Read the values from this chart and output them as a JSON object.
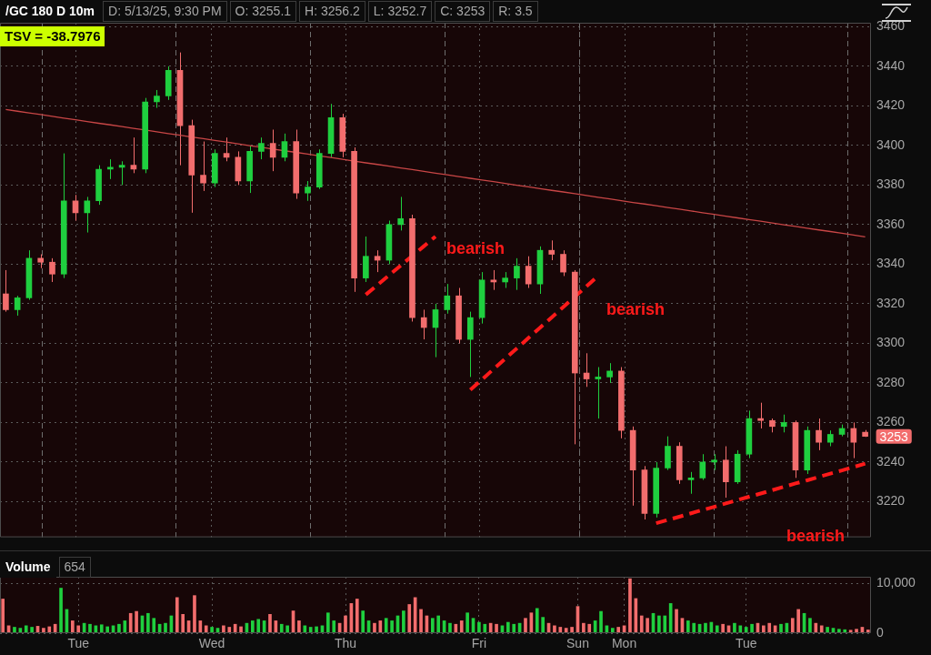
{
  "chart_data": [
    {
      "type": "candlestick",
      "title": "/GC 180 D 10m",
      "subtitle": "TSV = -38.7976",
      "annotations": [
        "D: 5/13/25, 9:30 PM",
        "O: 3255.1",
        "H: 3256.2",
        "L: 3252.7",
        "C: 3253",
        "R: 3.5",
        "bearish",
        "bearish",
        "bearish"
      ],
      "categories": [
        null,
        null,
        null,
        null,
        null,
        null,
        null,
        null,
        null,
        null,
        null,
        null,
        null,
        null,
        null,
        null,
        null,
        null,
        null,
        null,
        null,
        null,
        null,
        null,
        null,
        null,
        null,
        null,
        null,
        null,
        null,
        null,
        null,
        null,
        null,
        null,
        null,
        null,
        null,
        null,
        null,
        null,
        null,
        null,
        null,
        null,
        null,
        null,
        null,
        null,
        null,
        null,
        null,
        null,
        null,
        null,
        null,
        null,
        null,
        null,
        null,
        null,
        null,
        null,
        null,
        null,
        null,
        null,
        null,
        null,
        null,
        null,
        null,
        null,
        null
      ],
      "ylim": [
        3202,
        3462
      ],
      "yticks": [
        3220,
        3240,
        3260,
        3280,
        3300,
        3320,
        3340,
        3360,
        3380,
        3400,
        3420,
        3440,
        3460
      ],
      "tick_labels": "y",
      "grid": true,
      "series": [
        {
          "ohlc": [
            [
              3325,
              3337,
              3316,
              3317
            ],
            [
              3317,
              3324,
              3314,
              3323
            ],
            [
              3323,
              3347,
              3322,
              3343
            ],
            [
              3343,
              3345,
              3338,
              3341
            ],
            [
              3341,
              3343,
              3331,
              3335
            ],
            [
              3335,
              3396,
              3333,
              3372
            ],
            [
              3372,
              3375,
              3362,
              3366
            ],
            [
              3366,
              3374,
              3356,
              3372
            ],
            [
              3372,
              3390,
              3370,
              3388
            ],
            [
              3388,
              3393,
              3383,
              3389
            ],
            [
              3389,
              3392,
              3380,
              3390
            ],
            [
              3390,
              3404,
              3386,
              3388
            ],
            [
              3388,
              3424,
              3386,
              3422
            ],
            [
              3422,
              3428,
              3419,
              3425
            ],
            [
              3425,
              3440,
              3423,
              3438
            ],
            [
              3438,
              3447,
              3390,
              3410
            ],
            [
              3410,
              3413,
              3366,
              3385
            ],
            [
              3385,
              3402,
              3377,
              3381
            ],
            [
              3381,
              3398,
              3379,
              3396
            ],
            [
              3396,
              3404,
              3392,
              3394
            ],
            [
              3394,
              3397,
              3380,
              3382
            ],
            [
              3382,
              3400,
              3376,
              3397
            ],
            [
              3397,
              3404,
              3393,
              3401
            ],
            [
              3401,
              3408,
              3387,
              3394
            ],
            [
              3394,
              3406,
              3392,
              3402
            ],
            [
              3402,
              3408,
              3373,
              3376
            ],
            [
              3376,
              3382,
              3372,
              3379
            ],
            [
              3379,
              3398,
              3378,
              3396
            ],
            [
              3396,
              3421,
              3394,
              3414
            ],
            [
              3414,
              3416,
              3394,
              3397
            ],
            [
              3397,
              3399,
              3326,
              3333
            ],
            [
              3333,
              3354,
              3331,
              3344
            ],
            [
              3344,
              3347,
              3336,
              3342
            ],
            [
              3342,
              3362,
              3340,
              3360
            ],
            [
              3360,
              3374,
              3357,
              3363
            ],
            [
              3363,
              3365,
              3311,
              3313
            ],
            [
              3313,
              3317,
              3302,
              3308
            ],
            [
              3308,
              3320,
              3293,
              3317
            ],
            [
              3317,
              3330,
              3315,
              3324
            ],
            [
              3324,
              3328,
              3300,
              3302
            ],
            [
              3302,
              3316,
              3283,
              3313
            ],
            [
              3313,
              3336,
              3310,
              3332
            ],
            [
              3332,
              3337,
              3327,
              3331
            ],
            [
              3331,
              3336,
              3328,
              3333
            ],
            [
              3333,
              3343,
              3327,
              3339
            ],
            [
              3339,
              3344,
              3328,
              3330
            ],
            [
              3330,
              3349,
              3325,
              3347
            ],
            [
              3347,
              3352,
              3342,
              3345
            ],
            [
              3345,
              3347,
              3334,
              3336
            ],
            [
              3336,
              3337,
              3249,
              3285
            ],
            [
              3285,
              3295,
              3278,
              3282
            ],
            [
              3282,
              3288,
              3262,
              3283
            ],
            [
              3283,
              3290,
              3280,
              3286
            ],
            [
              3286,
              3288,
              3252,
              3256
            ],
            [
              3256,
              3258,
              3218,
              3236
            ],
            [
              3236,
              3238,
              3211,
              3214
            ],
            [
              3214,
              3240,
              3212,
              3237
            ],
            [
              3237,
              3253,
              3236,
              3248
            ],
            [
              3248,
              3250,
              3229,
              3231
            ],
            [
              3231,
              3235,
              3224,
              3232
            ],
            [
              3232,
              3244,
              3231,
              3240
            ],
            [
              3240,
              3244,
              3236,
              3241
            ],
            [
              3241,
              3248,
              3222,
              3230
            ],
            [
              3230,
              3246,
              3229,
              3244
            ],
            [
              3244,
              3266,
              3242,
              3262
            ],
            [
              3262,
              3270,
              3257,
              3261
            ],
            [
              3261,
              3262,
              3255,
              3258
            ],
            [
              3258,
              3264,
              3255,
              3260
            ],
            [
              3260,
              3261,
              3232,
              3236
            ],
            [
              3236,
              3258,
              3234,
              3256
            ],
            [
              3256,
              3262,
              3246,
              3250
            ],
            [
              3250,
              3256,
              3248,
              3254
            ],
            [
              3254,
              3259,
              3253,
              3257
            ],
            [
              3257,
              3260,
              3242,
              3250
            ],
            [
              3255.1,
              3256.2,
              3252.7,
              3253
            ]
          ],
          "colors": [
            "#f26d6d",
            "#1fcf3f",
            "#1fcf3f",
            "#f26d6d",
            "#f26d6d",
            "#1fcf3f",
            "#f26d6d",
            "#1fcf3f",
            "#1fcf3f",
            "#1fcf3f",
            "#1fcf3f",
            "#f26d6d",
            "#1fcf3f",
            "#1fcf3f",
            "#1fcf3f",
            "#f26d6d",
            "#f26d6d",
            "#f26d6d",
            "#1fcf3f",
            "#f26d6d",
            "#f26d6d",
            "#1fcf3f",
            "#1fcf3f",
            "#f26d6d",
            "#1fcf3f",
            "#f26d6d",
            "#1fcf3f",
            "#1fcf3f",
            "#1fcf3f",
            "#f26d6d",
            "#f26d6d",
            "#1fcf3f",
            "#f26d6d",
            "#1fcf3f",
            "#1fcf3f",
            "#f26d6d",
            "#f26d6d",
            "#1fcf3f",
            "#1fcf3f",
            "#f26d6d",
            "#1fcf3f",
            "#1fcf3f",
            "#f26d6d",
            "#1fcf3f",
            "#1fcf3f",
            "#f26d6d",
            "#1fcf3f",
            "#f26d6d",
            "#f26d6d",
            "#f26d6d",
            "#f26d6d",
            "#1fcf3f",
            "#1fcf3f",
            "#f26d6d",
            "#f26d6d",
            "#f26d6d",
            "#1fcf3f",
            "#1fcf3f",
            "#f26d6d",
            "#1fcf3f",
            "#1fcf3f",
            "#1fcf3f",
            "#f26d6d",
            "#1fcf3f",
            "#1fcf3f",
            "#f26d6d",
            "#f26d6d",
            "#1fcf3f",
            "#f26d6d",
            "#1fcf3f",
            "#f26d6d",
            "#1fcf3f",
            "#1fcf3f",
            "#f26d6d",
            "#f26d6d"
          ],
          "value_labels": [
            null,
            null,
            null,
            null,
            null,
            null,
            null,
            null,
            null,
            null,
            null,
            null,
            null,
            null,
            null,
            null,
            null,
            null,
            null,
            null,
            null,
            null,
            null,
            null,
            null,
            null,
            null,
            null,
            null,
            null,
            null,
            null,
            null,
            null,
            null,
            null,
            null,
            null,
            null,
            null,
            null,
            null,
            null,
            null,
            null,
            null,
            null,
            null,
            null,
            null,
            null,
            null,
            null,
            null,
            null,
            null,
            null,
            null,
            null,
            null,
            null,
            null,
            null,
            null,
            null,
            null,
            null,
            null,
            null,
            null,
            null,
            null,
            null,
            null,
            "3253"
          ]
        },
        {
          "type": "line",
          "color": "#c84646",
          "values": [
            3418.2,
            3417.3,
            3416.4,
            3415.6,
            3414.7,
            3413.8,
            3413,
            3412.1,
            3411.2,
            3410.4,
            3409.5,
            3408.6,
            3407.8,
            3406.9,
            3406,
            3405.2,
            3404.3,
            3403.4,
            3402.5,
            3401.7,
            3400.8,
            3399.9,
            3399.1,
            3398.2,
            3397.3,
            3396.5,
            3395.6,
            3394.7,
            3393.9,
            3393,
            3392.1,
            3391.2,
            3390.4,
            3389.5,
            3388.6,
            3387.8,
            3386.9,
            3386,
            3385.2,
            3384.3,
            3383.4,
            3382.5,
            3381.7,
            3380.8,
            3379.9,
            3379.1,
            3378.2,
            3377.3,
            3376.5,
            3375.6,
            3374.7,
            3373.8,
            3373,
            3372.1,
            3371.2,
            3370.4,
            3369.5,
            3368.6,
            3367.8,
            3366.9,
            3366,
            3365.2,
            3364.3,
            3363.4,
            3362.5,
            3361.7,
            3360.8,
            3359.9,
            3359.1,
            3358.2,
            3357.3,
            3356.5,
            3355.6,
            3354.7,
            3353.8
          ]
        },
        {
          "type": "line",
          "color": "#ff1a1a",
          "line_style": "dashed",
          "values": [
            null,
            null,
            null,
            null,
            null,
            null,
            null,
            null,
            null,
            null,
            null,
            null,
            null,
            null,
            null,
            null,
            null,
            null,
            null,
            null,
            null,
            null,
            null,
            null,
            null,
            null,
            null,
            null,
            null,
            null,
            null,
            3324.6,
            3329.5,
            3334.4,
            3339.3,
            3344.2,
            3349.1,
            3354,
            null,
            null,
            null,
            null,
            null,
            null,
            null,
            null,
            null,
            null,
            null,
            null,
            null,
            null,
            null,
            null,
            null,
            null,
            null,
            null,
            null,
            null,
            null,
            null,
            null,
            null,
            null,
            null,
            null,
            null,
            null,
            null,
            null,
            null,
            null,
            null,
            null
          ]
        },
        {
          "type": "line",
          "color": "#ff1a1a",
          "line_style": "dashed",
          "values": [
            null,
            null,
            null,
            null,
            null,
            null,
            null,
            null,
            null,
            null,
            null,
            null,
            null,
            null,
            null,
            null,
            null,
            null,
            null,
            null,
            null,
            null,
            null,
            null,
            null,
            null,
            null,
            null,
            null,
            null,
            null,
            null,
            null,
            null,
            null,
            null,
            null,
            null,
            null,
            null,
            3276.5,
            3281.7,
            3287,
            3292.2,
            3297.4,
            3302.7,
            3307.9,
            3313.1,
            3318.3,
            3323.6,
            3328.8,
            3334,
            null,
            null,
            null,
            null,
            null,
            null,
            null,
            null,
            null,
            null,
            null,
            null,
            null,
            null,
            null,
            null,
            null,
            null,
            null,
            null,
            null,
            null,
            null
          ]
        },
        {
          "type": "line",
          "color": "#ff1a1a",
          "line_style": "dashed",
          "values": [
            null,
            null,
            null,
            null,
            null,
            null,
            null,
            null,
            null,
            null,
            null,
            null,
            null,
            null,
            null,
            null,
            null,
            null,
            null,
            null,
            null,
            null,
            null,
            null,
            null,
            null,
            null,
            null,
            null,
            null,
            null,
            null,
            null,
            null,
            null,
            null,
            null,
            null,
            null,
            null,
            null,
            null,
            null,
            null,
            null,
            null,
            null,
            null,
            null,
            null,
            null,
            null,
            null,
            null,
            null,
            null,
            3209.1,
            3210.8,
            3212.4,
            3214.1,
            3215.8,
            3217.4,
            3219.1,
            3220.8,
            3222.5,
            3224.1,
            3225.8,
            3227.5,
            3229.2,
            3230.8,
            3232.5,
            3234.2,
            3235.8,
            3237.5,
            3239.2
          ]
        }
      ]
    },
    {
      "type": "bar",
      "title": "Volume",
      "annotations": [
        "654"
      ],
      "categories": [
        null,
        null,
        null,
        null,
        null,
        null,
        null,
        null,
        null,
        null,
        null,
        null,
        null,
        "Tue",
        null,
        null,
        null,
        null,
        null,
        null,
        null,
        null,
        null,
        null,
        null,
        null,
        null,
        null,
        null,
        null,
        null,
        null,
        null,
        null,
        null,
        null,
        "Wed",
        null,
        null,
        null,
        null,
        null,
        null,
        null,
        null,
        null,
        null,
        null,
        null,
        null,
        null,
        null,
        null,
        null,
        null,
        null,
        null,
        null,
        null,
        "Thu",
        null,
        null,
        null,
        null,
        null,
        null,
        null,
        null,
        null,
        null,
        null,
        null,
        null,
        null,
        null,
        null,
        null,
        null,
        null,
        null,
        null,
        null,
        "Fri",
        null,
        null,
        null,
        null,
        null,
        null,
        null,
        null,
        null,
        null,
        null,
        null,
        null,
        null,
        null,
        null,
        "Sun",
        null,
        null,
        null,
        null,
        null,
        null,
        null,
        "Mon",
        null,
        null,
        null,
        null,
        null,
        null,
        null,
        null,
        null,
        null,
        null,
        null,
        null,
        null,
        null,
        null,
        null,
        null,
        null,
        null,
        "Tue",
        null,
        null,
        null,
        null,
        null,
        null,
        null,
        null,
        null,
        null,
        null,
        null,
        null,
        null,
        null,
        null,
        null,
        null,
        null,
        null,
        null
      ],
      "values": [
        6900,
        1500,
        1200,
        1000,
        1500,
        1200,
        1400,
        1000,
        1300,
        1800,
        9100,
        4800,
        2500,
        1500,
        2000,
        1800,
        1500,
        1700,
        1300,
        1500,
        1800,
        2500,
        4000,
        4400,
        3500,
        4000,
        3000,
        1800,
        2000,
        3500,
        7200,
        3800,
        2500,
        7600,
        2500,
        1500,
        1200,
        1000,
        1500,
        1200,
        1800,
        1300,
        2000,
        2500,
        2800,
        2500,
        3800,
        2500,
        1800,
        1500,
        4500,
        2500,
        1500,
        1200,
        1300,
        1500,
        4100,
        2500,
        2000,
        3500,
        6000,
        6900,
        4500,
        2500,
        2000,
        2500,
        3000,
        2500,
        3500,
        4500,
        5800,
        7200,
        4800,
        3500,
        3000,
        3500,
        2500,
        2000,
        1800,
        2500,
        4100,
        3000,
        2200,
        1800,
        2000,
        1800,
        1500,
        2200,
        1800,
        2000,
        3000,
        4100,
        5000,
        3200,
        2000,
        1500,
        1200,
        1000,
        1200,
        5400,
        2000,
        1800,
        2500,
        4400,
        1500,
        1000,
        1200,
        1500,
        11000,
        7000,
        3500,
        3000,
        4000,
        3500,
        3500,
        6000,
        4800,
        3000,
        2500,
        2000,
        1800,
        2000,
        2200,
        1500,
        1800,
        1500,
        2000,
        1500,
        1200,
        1800,
        2000,
        1500,
        2000,
        1500,
        1800,
        2000,
        3000,
        4800,
        4000,
        3000,
        2000,
        1500,
        1200,
        1000,
        800,
        700,
        600,
        800,
        1200,
        654
      ],
      "colors": [
        "#f26d6d",
        "#f26d6d",
        "#1fcf3f",
        "#1fcf3f",
        "#1fcf3f",
        "#1fcf3f",
        "#f26d6d",
        "#f26d6d",
        "#f26d6d",
        "#f26d6d",
        "#1fcf3f",
        "#1fcf3f",
        "#f26d6d",
        "#f26d6d",
        "#1fcf3f",
        "#1fcf3f",
        "#1fcf3f",
        "#1fcf3f",
        "#1fcf3f",
        "#1fcf3f",
        "#1fcf3f",
        "#1fcf3f",
        "#f26d6d",
        "#f26d6d",
        "#1fcf3f",
        "#1fcf3f",
        "#1fcf3f",
        "#1fcf3f",
        "#1fcf3f",
        "#1fcf3f",
        "#f26d6d",
        "#f26d6d",
        "#f26d6d",
        "#f26d6d",
        "#f26d6d",
        "#f26d6d",
        "#1fcf3f",
        "#1fcf3f",
        "#f26d6d",
        "#f26d6d",
        "#f26d6d",
        "#f26d6d",
        "#1fcf3f",
        "#1fcf3f",
        "#1fcf3f",
        "#1fcf3f",
        "#f26d6d",
        "#f26d6d",
        "#1fcf3f",
        "#1fcf3f",
        "#f26d6d",
        "#f26d6d",
        "#1fcf3f",
        "#1fcf3f",
        "#1fcf3f",
        "#1fcf3f",
        "#1fcf3f",
        "#1fcf3f",
        "#f26d6d",
        "#f26d6d",
        "#f26d6d",
        "#f26d6d",
        "#1fcf3f",
        "#1fcf3f",
        "#f26d6d",
        "#f26d6d",
        "#1fcf3f",
        "#1fcf3f",
        "#1fcf3f",
        "#1fcf3f",
        "#f26d6d",
        "#f26d6d",
        "#f26d6d",
        "#f26d6d",
        "#1fcf3f",
        "#1fcf3f",
        "#1fcf3f",
        "#1fcf3f",
        "#f26d6d",
        "#f26d6d",
        "#1fcf3f",
        "#1fcf3f",
        "#1fcf3f",
        "#1fcf3f",
        "#f26d6d",
        "#f26d6d",
        "#1fcf3f",
        "#1fcf3f",
        "#1fcf3f",
        "#1fcf3f",
        "#f26d6d",
        "#f26d6d",
        "#1fcf3f",
        "#1fcf3f",
        "#f26d6d",
        "#f26d6d",
        "#f26d6d",
        "#f26d6d",
        "#f26d6d",
        "#f26d6d",
        "#f26d6d",
        "#f26d6d",
        "#1fcf3f",
        "#1fcf3f",
        "#1fcf3f",
        "#1fcf3f",
        "#f26d6d",
        "#f26d6d",
        "#f26d6d",
        "#f26d6d",
        "#f26d6d",
        "#f26d6d",
        "#1fcf3f",
        "#1fcf3f",
        "#1fcf3f",
        "#1fcf3f",
        "#f26d6d",
        "#f26d6d",
        "#1fcf3f",
        "#1fcf3f",
        "#1fcf3f",
        "#1fcf3f",
        "#1fcf3f",
        "#1fcf3f",
        "#f26d6d",
        "#f26d6d",
        "#1fcf3f",
        "#1fcf3f",
        "#1fcf3f",
        "#1fcf3f",
        "#f26d6d",
        "#f26d6d",
        "#f26d6d",
        "#f26d6d",
        "#1fcf3f",
        "#1fcf3f",
        "#f26d6d",
        "#f26d6d",
        "#1fcf3f",
        "#1fcf3f",
        "#f26d6d",
        "#f26d6d",
        "#1fcf3f",
        "#1fcf3f",
        "#1fcf3f",
        "#1fcf3f",
        "#f26d6d",
        "#f26d6d",
        "#f26d6d",
        "#f26d6d"
      ],
      "ylim": [
        0,
        11400
      ],
      "yticks": [
        0,
        {
          "value": 10000,
          "label": "10,000"
        }
      ],
      "grid": true
    }
  ]
}
